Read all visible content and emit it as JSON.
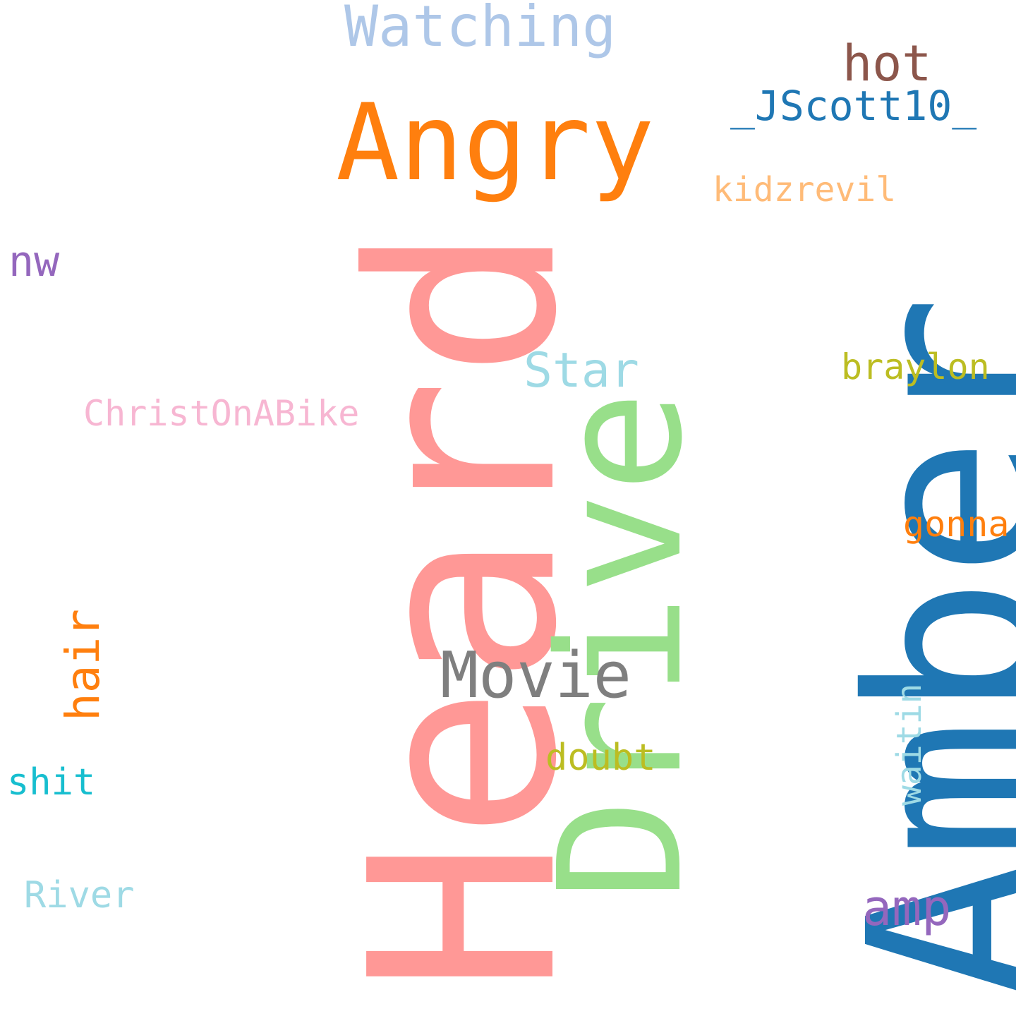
{
  "words": {
    "heard": {
      "text": "Heard",
      "color": "#ff9896",
      "orientation": "vertical"
    },
    "amber": {
      "text": "Amber",
      "color": "#1f77b4",
      "orientation": "vertical"
    },
    "drive": {
      "text": "Drive",
      "color": "#98df8a",
      "orientation": "vertical"
    },
    "angry": {
      "text": "Angry",
      "color": "#ff7f0e",
      "orientation": "horizontal"
    },
    "watching": {
      "text": "Watching",
      "color": "#aec7e8",
      "orientation": "horizontal"
    },
    "hot": {
      "text": "hot",
      "color": "#8c564b",
      "orientation": "horizontal"
    },
    "jscott": {
      "text": "_JScott10_",
      "color": "#1f77b4",
      "orientation": "horizontal"
    },
    "kidzrevil": {
      "text": "kidzrevil",
      "color": "#ffbb78",
      "orientation": "horizontal"
    },
    "nw": {
      "text": "nw",
      "color": "#9467bd",
      "orientation": "horizontal"
    },
    "star": {
      "text": "Star",
      "color": "#9edae5",
      "orientation": "horizontal"
    },
    "braylon": {
      "text": "braylon",
      "color": "#bcbd22",
      "orientation": "horizontal"
    },
    "christ": {
      "text": "ChristOnABike",
      "color": "#f7b6d2",
      "orientation": "horizontal"
    },
    "gonna": {
      "text": "gonna",
      "color": "#ff7f0e",
      "orientation": "horizontal"
    },
    "hair": {
      "text": "hair",
      "color": "#ff7f0e",
      "orientation": "vertical"
    },
    "movie": {
      "text": "Movie",
      "color": "#7f7f7f",
      "orientation": "horizontal"
    },
    "doubt": {
      "text": "doubt",
      "color": "#bcbd22",
      "orientation": "horizontal"
    },
    "waitin": {
      "text": "waitin",
      "color": "#9edae5",
      "orientation": "vertical"
    },
    "shit": {
      "text": "shit",
      "color": "#17becf",
      "orientation": "horizontal"
    },
    "river": {
      "text": "River",
      "color": "#9edae5",
      "orientation": "horizontal"
    },
    "amp": {
      "text": "amp",
      "color": "#9467bd",
      "orientation": "horizontal"
    }
  }
}
